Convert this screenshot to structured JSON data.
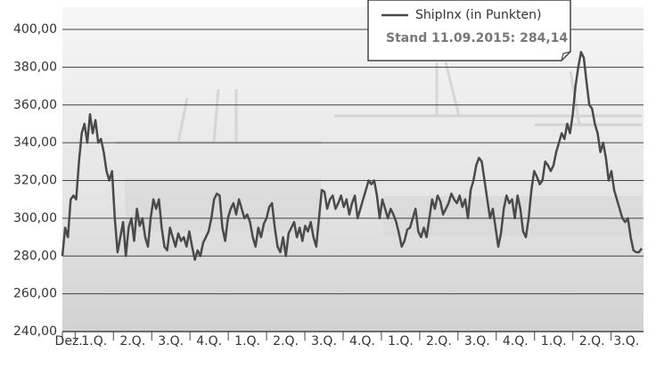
{
  "chart_data": {
    "type": "line",
    "annotation": "Stand 11.09.2015: 284,14",
    "x_tick_labels": [
      "Dez.",
      "1.Q.",
      "2.Q.",
      "3.Q.",
      "4.Q.",
      "1.Q.",
      "2.Q.",
      "3.Q.",
      "4.Q.",
      "1.Q.",
      "2.Q.",
      "3.Q.",
      "4.Q.",
      "1.Q.",
      "2.Q.",
      "3.Q."
    ],
    "ylim": [
      240,
      400
    ],
    "yticks": [
      {
        "value": 240,
        "label": "240,00"
      },
      {
        "value": 260,
        "label": "260,00"
      },
      {
        "value": 280,
        "label": "280,00"
      },
      {
        "value": 300,
        "label": "300,00"
      },
      {
        "value": 320,
        "label": "320,00"
      },
      {
        "value": 340,
        "label": "340,00"
      },
      {
        "value": 360,
        "label": "360,00"
      },
      {
        "value": 380,
        "label": "380,00"
      },
      {
        "value": 400,
        "label": "400,00"
      }
    ],
    "grid": true,
    "series": [
      {
        "name": "ShipInx (in Punkten)",
        "color": "#4a4a4a",
        "values": [
          280,
          295,
          290,
          310,
          312,
          310,
          330,
          345,
          350,
          340,
          355,
          345,
          352,
          340,
          342,
          335,
          325,
          320,
          325,
          300,
          282,
          290,
          298,
          280,
          295,
          300,
          288,
          305,
          296,
          300,
          290,
          285,
          300,
          310,
          305,
          310,
          295,
          285,
          283,
          295,
          290,
          285,
          292,
          288,
          290,
          285,
          293,
          285,
          278,
          283,
          280,
          287,
          290,
          293,
          300,
          310,
          313,
          312,
          295,
          288,
          300,
          305,
          308,
          302,
          310,
          305,
          300,
          302,
          298,
          290,
          285,
          295,
          290,
          297,
          300,
          306,
          308,
          295,
          285,
          282,
          290,
          280,
          292,
          295,
          298,
          290,
          295,
          288,
          296,
          293,
          298,
          290,
          285,
          300,
          315,
          314,
          305,
          310,
          312,
          305,
          308,
          312,
          306,
          310,
          302,
          308,
          312,
          300,
          305,
          310,
          315,
          320,
          318,
          320,
          312,
          300,
          310,
          305,
          300,
          305,
          302,
          298,
          292,
          285,
          288,
          294,
          295,
          300,
          305,
          293,
          290,
          295,
          290,
          300,
          310,
          305,
          312,
          309,
          302,
          305,
          308,
          313,
          310,
          308,
          312,
          306,
          310,
          300,
          315,
          320,
          328,
          332,
          330,
          320,
          310,
          300,
          305,
          295,
          285,
          292,
          305,
          312,
          308,
          310,
          300,
          312,
          305,
          293,
          290,
          300,
          315,
          325,
          322,
          318,
          320,
          330,
          328,
          325,
          328,
          335,
          340,
          345,
          342,
          350,
          345,
          355,
          370,
          380,
          388,
          385,
          372,
          360,
          358,
          350,
          345,
          335,
          340,
          332,
          320,
          325,
          315,
          310,
          305,
          300,
          298,
          300,
          290,
          283,
          282,
          282,
          284
        ]
      }
    ]
  }
}
